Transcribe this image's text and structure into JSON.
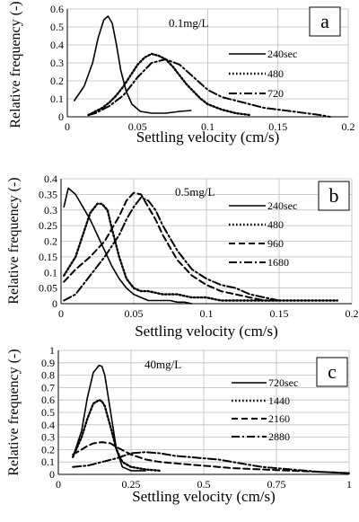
{
  "chart_data": [
    {
      "type": "line",
      "panel_label": "a",
      "annotation": "0.1mg/L",
      "xlabel": "Settling velocity (cm/s)",
      "ylabel": "Relative frequency (-)",
      "xlim": [
        0,
        0.2
      ],
      "ylim": [
        0,
        0.6
      ],
      "xticks": [
        "0",
        "0.05",
        "0.1",
        "0.15",
        "0.2"
      ],
      "yticks": [
        "0",
        "0.1",
        "0.2",
        "0.3",
        "0.4",
        "0.5",
        "0.6"
      ],
      "grid": true,
      "legend_position": "right",
      "series": [
        {
          "name": "240sec",
          "style": "solid",
          "x": [
            0.005,
            0.012,
            0.018,
            0.022,
            0.026,
            0.029,
            0.032,
            0.035,
            0.038,
            0.042,
            0.046,
            0.052,
            0.06,
            0.07,
            0.08,
            0.088
          ],
          "y": [
            0.09,
            0.17,
            0.3,
            0.44,
            0.54,
            0.56,
            0.52,
            0.4,
            0.26,
            0.14,
            0.07,
            0.03,
            0.02,
            0.02,
            0.03,
            0.035
          ]
        },
        {
          "name": "480",
          "style": "dotted",
          "x": [
            0.015,
            0.02,
            0.025,
            0.03,
            0.035,
            0.04,
            0.045,
            0.05,
            0.055,
            0.06,
            0.065,
            0.07,
            0.075,
            0.08,
            0.085,
            0.09,
            0.095,
            0.1,
            0.11,
            0.12,
            0.13
          ],
          "y": [
            0.01,
            0.03,
            0.05,
            0.08,
            0.12,
            0.17,
            0.23,
            0.29,
            0.33,
            0.35,
            0.34,
            0.32,
            0.28,
            0.23,
            0.18,
            0.14,
            0.1,
            0.07,
            0.04,
            0.02,
            0.01
          ]
        },
        {
          "name": "720",
          "style": "dashdot",
          "x": [
            0.015,
            0.02,
            0.03,
            0.04,
            0.05,
            0.06,
            0.07,
            0.08,
            0.09,
            0.1,
            0.11,
            0.12,
            0.13,
            0.14,
            0.15,
            0.16,
            0.17,
            0.18,
            0.187
          ],
          "y": [
            0.01,
            0.02,
            0.06,
            0.12,
            0.22,
            0.3,
            0.32,
            0.29,
            0.22,
            0.15,
            0.11,
            0.09,
            0.07,
            0.05,
            0.04,
            0.03,
            0.02,
            0.01,
            0.0
          ]
        }
      ]
    },
    {
      "type": "line",
      "panel_label": "b",
      "annotation": "0.5mg/L",
      "xlabel": "Settling velocity (cm/s)",
      "ylabel": "Relative frequency (-)",
      "xlim": [
        0,
        0.2
      ],
      "ylim": [
        0,
        0.4
      ],
      "xticks": [
        "0",
        "0.05",
        "0.1",
        "0.15",
        "0.2"
      ],
      "yticks": [
        "0",
        "0.05",
        "0.1",
        "0.15",
        "0.2",
        "0.25",
        "0.3",
        "0.35",
        "0.4"
      ],
      "grid": true,
      "legend_position": "right",
      "series": [
        {
          "name": "240sec",
          "style": "solid",
          "x": [
            0.002,
            0.005,
            0.01,
            0.015,
            0.02,
            0.025,
            0.03,
            0.035,
            0.04,
            0.045,
            0.05,
            0.055,
            0.06,
            0.065,
            0.07,
            0.075,
            0.08,
            0.085,
            0.09
          ],
          "y": [
            0.31,
            0.37,
            0.35,
            0.31,
            0.27,
            0.22,
            0.17,
            0.12,
            0.08,
            0.05,
            0.03,
            0.02,
            0.01,
            0.01,
            0.01,
            0.01,
            0.005,
            0.005,
            0.0
          ]
        },
        {
          "name": "480",
          "style": "dotted",
          "x": [
            0.002,
            0.01,
            0.015,
            0.02,
            0.025,
            0.028,
            0.032,
            0.035,
            0.04,
            0.045,
            0.05,
            0.055,
            0.06,
            0.07,
            0.08,
            0.09,
            0.1,
            0.11,
            0.12,
            0.13,
            0.14,
            0.15,
            0.16,
            0.17,
            0.18,
            0.19
          ],
          "y": [
            0.09,
            0.15,
            0.22,
            0.29,
            0.32,
            0.32,
            0.3,
            0.24,
            0.15,
            0.08,
            0.05,
            0.04,
            0.04,
            0.03,
            0.03,
            0.02,
            0.02,
            0.01,
            0.01,
            0.01,
            0.01,
            0.01,
            0.01,
            0.01,
            0.01,
            0.01
          ]
        },
        {
          "name": "960",
          "style": "dashed",
          "x": [
            0.002,
            0.01,
            0.02,
            0.03,
            0.04,
            0.045,
            0.05,
            0.055,
            0.06,
            0.065,
            0.07,
            0.08,
            0.09,
            0.1,
            0.11,
            0.12,
            0.13,
            0.14,
            0.15
          ],
          "y": [
            0.07,
            0.11,
            0.15,
            0.2,
            0.28,
            0.33,
            0.355,
            0.35,
            0.31,
            0.27,
            0.22,
            0.14,
            0.09,
            0.06,
            0.04,
            0.03,
            0.02,
            0.01,
            0.01
          ]
        },
        {
          "name": "1680",
          "style": "dashdot",
          "x": [
            0.002,
            0.01,
            0.02,
            0.03,
            0.04,
            0.045,
            0.05,
            0.055,
            0.06,
            0.065,
            0.07,
            0.08,
            0.09,
            0.1,
            0.11,
            0.12,
            0.13,
            0.14,
            0.15
          ],
          "y": [
            0.01,
            0.03,
            0.09,
            0.15,
            0.22,
            0.27,
            0.31,
            0.34,
            0.33,
            0.3,
            0.25,
            0.17,
            0.11,
            0.08,
            0.06,
            0.05,
            0.03,
            0.02,
            0.01
          ]
        }
      ]
    },
    {
      "type": "line",
      "panel_label": "c",
      "annotation": "40mg/L",
      "xlabel": "Settling velocity (cm/s)",
      "ylabel": "Relative frequency (-)",
      "xlim": [
        0,
        1
      ],
      "ylim": [
        0,
        1
      ],
      "xticks": [
        "0",
        "0.25",
        "0.5",
        "0.75",
        "1"
      ],
      "yticks": [
        "0",
        "0.1",
        "0.2",
        "0.3",
        "0.4",
        "0.5",
        "0.6",
        "0.7",
        "0.8",
        "0.9",
        "1"
      ],
      "grid": true,
      "legend_position": "right",
      "series": [
        {
          "name": "720sec",
          "style": "solid",
          "x": [
            0.05,
            0.08,
            0.1,
            0.12,
            0.14,
            0.15,
            0.16,
            0.18,
            0.2,
            0.22,
            0.25,
            0.3
          ],
          "y": [
            0.14,
            0.35,
            0.62,
            0.82,
            0.88,
            0.87,
            0.8,
            0.5,
            0.2,
            0.06,
            0.03,
            0.03
          ]
        },
        {
          "name": "1440",
          "style": "dotted",
          "x": [
            0.05,
            0.08,
            0.1,
            0.12,
            0.14,
            0.15,
            0.16,
            0.18,
            0.2,
            0.22,
            0.25,
            0.3,
            0.35
          ],
          "y": [
            0.14,
            0.3,
            0.45,
            0.57,
            0.6,
            0.59,
            0.55,
            0.38,
            0.2,
            0.1,
            0.06,
            0.04,
            0.03
          ]
        },
        {
          "name": "2160",
          "style": "dashed",
          "x": [
            0.05,
            0.08,
            0.1,
            0.12,
            0.15,
            0.18,
            0.2,
            0.25,
            0.3,
            0.35,
            0.4,
            0.45,
            0.5,
            0.55,
            0.6,
            0.7,
            0.8,
            0.9,
            1.0
          ],
          "y": [
            0.16,
            0.2,
            0.23,
            0.25,
            0.26,
            0.25,
            0.22,
            0.16,
            0.12,
            0.1,
            0.09,
            0.08,
            0.07,
            0.06,
            0.05,
            0.04,
            0.03,
            0.02,
            0.01
          ]
        },
        {
          "name": "2880",
          "style": "dashdot",
          "x": [
            0.05,
            0.1,
            0.15,
            0.2,
            0.25,
            0.3,
            0.35,
            0.4,
            0.45,
            0.5,
            0.55,
            0.6,
            0.65,
            0.7,
            0.75,
            0.8,
            0.9,
            1.0
          ],
          "y": [
            0.06,
            0.07,
            0.1,
            0.13,
            0.17,
            0.18,
            0.17,
            0.15,
            0.14,
            0.13,
            0.12,
            0.1,
            0.08,
            0.06,
            0.05,
            0.04,
            0.02,
            0.01
          ]
        }
      ]
    }
  ]
}
